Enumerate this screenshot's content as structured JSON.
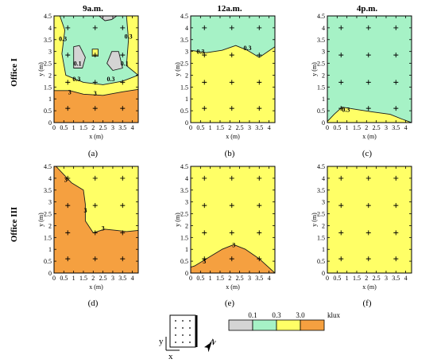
{
  "figure": {
    "column_titles": [
      "9a.m.",
      "12a.m.",
      "4p.m."
    ],
    "row_titles": [
      "Office I",
      "Office III"
    ],
    "panel_labels": [
      "(a)",
      "(b)",
      "(c)",
      "(d)",
      "(e)",
      "(f)"
    ],
    "xlabel": "x (m)",
    "ylabel": "y (m)",
    "x_ticks": [
      "0",
      "0.5",
      "1",
      "1.5",
      "2",
      "2.5",
      "3",
      "3.5",
      "4"
    ],
    "y_ticks": [
      "0",
      "0.5",
      "1",
      "1.5",
      "2",
      "2.5",
      "3",
      "3.5",
      "4",
      "4.5"
    ],
    "colors": {
      "below_0_1": "#d4d4d4",
      "range_0_1_0_3": "#a6f2c6",
      "range_0_3_3_0": "#ffff66",
      "above_3_0": "#f5a040"
    }
  },
  "legend": {
    "thresholds": [
      "0.1",
      "0.3",
      "3.0"
    ],
    "unit": "klux",
    "colors": [
      "#d4d4d4",
      "#a6f2c6",
      "#ffff66",
      "#f5a040"
    ]
  },
  "inset": {
    "y_label": "y",
    "x_label": "x",
    "north_label": "N"
  },
  "chart_data": {
    "type": "heatmap",
    "description_units": "illuminance isoline map, klux",
    "xlim": [
      0,
      4.3
    ],
    "ylim": [
      0,
      4.5
    ],
    "sensor_points": [
      [
        0.7,
        0.6
      ],
      [
        2.1,
        0.6
      ],
      [
        3.5,
        0.6
      ],
      [
        0.7,
        1.7
      ],
      [
        2.1,
        1.7
      ],
      [
        3.5,
        1.7
      ],
      [
        0.7,
        2.85
      ],
      [
        2.1,
        2.85
      ],
      [
        3.5,
        2.85
      ],
      [
        0.7,
        4.0
      ],
      [
        2.1,
        4.0
      ],
      [
        3.5,
        4.0
      ]
    ],
    "panels": [
      {
        "id": "a",
        "background": "range_0_1_0_3",
        "regions": [
          {
            "fill": "range_0_3_3_0",
            "points": [
              [
                0,
                0
              ],
              [
                4.3,
                0
              ],
              [
                4.3,
                2.0
              ],
              [
                3.5,
                1.75
              ],
              [
                2.5,
                1.6
              ],
              [
                1.5,
                1.7
              ],
              [
                0.6,
                2.0
              ],
              [
                0.4,
                2.9
              ],
              [
                0.55,
                3.9
              ],
              [
                0.3,
                4.5
              ],
              [
                0,
                4.5
              ]
            ]
          },
          {
            "fill": "range_0_3_3_0",
            "points": [
              [
                3.7,
                4.5
              ],
              [
                4.3,
                4.5
              ],
              [
                4.3,
                2.0
              ],
              [
                3.7,
                2.4
              ],
              [
                3.8,
                3.5
              ]
            ]
          },
          {
            "fill": "above_3_0",
            "points": [
              [
                0,
                0
              ],
              [
                4.3,
                0
              ],
              [
                4.3,
                1.4
              ],
              [
                3.5,
                1.3
              ],
              [
                2.5,
                1.15
              ],
              [
                1.5,
                1.2
              ],
              [
                0.8,
                1.35
              ],
              [
                0,
                1.35
              ]
            ]
          },
          {
            "fill": "below_0_1",
            "points": [
              [
                1.0,
                2.3
              ],
              [
                1.45,
                2.3
              ],
              [
                1.6,
                2.75
              ],
              [
                1.3,
                3.25
              ],
              [
                1.0,
                3.2
              ]
            ]
          },
          {
            "fill": "below_0_1",
            "points": [
              [
                2.7,
                2.5
              ],
              [
                3.0,
                2.2
              ],
              [
                3.5,
                2.3
              ],
              [
                3.3,
                3.0
              ],
              [
                2.95,
                3.0
              ]
            ]
          },
          {
            "fill": "below_0_1",
            "points": [
              [
                2.3,
                4.5
              ],
              [
                2.6,
                4.3
              ],
              [
                2.95,
                4.35
              ],
              [
                3.2,
                4.5
              ]
            ]
          },
          {
            "fill": "range_0_3_3_0",
            "points": [
              [
                1.95,
                2.8
              ],
              [
                2.25,
                2.8
              ],
              [
                2.25,
                3.1
              ],
              [
                1.95,
                3.1
              ]
            ]
          }
        ],
        "labels": [
          {
            "text": "0.3",
            "x": 0.45,
            "y": 3.55
          },
          {
            "text": "0.3",
            "x": 3.8,
            "y": 3.65
          },
          {
            "text": "0.1",
            "x": 1.2,
            "y": 2.5
          },
          {
            "text": "0.1",
            "x": 3.6,
            "y": 2.5
          },
          {
            "text": "0.3",
            "x": 1.15,
            "y": 1.85
          },
          {
            "text": "0.3",
            "x": 2.9,
            "y": 1.85
          },
          {
            "text": "3",
            "x": 0.8,
            "y": 1.3
          },
          {
            "text": "3",
            "x": 2.1,
            "y": 1.25
          }
        ]
      },
      {
        "id": "b",
        "background": "range_0_3_3_0",
        "regions": [
          {
            "fill": "range_0_1_0_3",
            "points": [
              [
                0,
                3.05
              ],
              [
                0.8,
                2.95
              ],
              [
                1.6,
                3.05
              ],
              [
                2.3,
                3.25
              ],
              [
                2.9,
                3.05
              ],
              [
                3.5,
                2.75
              ],
              [
                4.3,
                3.2
              ],
              [
                4.3,
                4.5
              ],
              [
                0,
                4.5
              ]
            ]
          }
        ],
        "labels": [
          {
            "text": "0.3",
            "x": 0.5,
            "y": 3.0
          },
          {
            "text": "0.3",
            "x": 2.9,
            "y": 3.15
          }
        ]
      },
      {
        "id": "c",
        "background": "range_0_1_0_3",
        "regions": [
          {
            "fill": "range_0_3_3_0",
            "points": [
              [
                0,
                0
              ],
              [
                4.3,
                0
              ],
              [
                3.8,
                0.15
              ],
              [
                3.2,
                0.35
              ],
              [
                2.3,
                0.45
              ],
              [
                1.5,
                0.55
              ],
              [
                0.75,
                0.65
              ],
              [
                0.35,
                0.35
              ],
              [
                0,
                0.05
              ]
            ]
          }
        ],
        "labels": [
          {
            "text": "0.3",
            "x": 0.95,
            "y": 0.55
          }
        ]
      },
      {
        "id": "d",
        "background": "range_0_3_3_0",
        "regions": [
          {
            "fill": "above_3_0",
            "points": [
              [
                0,
                0
              ],
              [
                4.3,
                0
              ],
              [
                4.3,
                1.8
              ],
              [
                3.7,
                1.75
              ],
              [
                3.2,
                1.8
              ],
              [
                2.6,
                1.85
              ],
              [
                2.0,
                1.7
              ],
              [
                1.6,
                2.2
              ],
              [
                1.6,
                2.9
              ],
              [
                1.5,
                3.5
              ],
              [
                0.9,
                3.8
              ],
              [
                0.1,
                4.5
              ],
              [
                0,
                4.5
              ]
            ]
          }
        ],
        "labels": [
          {
            "text": "3",
            "x": 0.6,
            "y": 3.95
          },
          {
            "text": "3",
            "x": 1.6,
            "y": 2.65
          },
          {
            "text": "3",
            "x": 2.5,
            "y": 1.9
          }
        ]
      },
      {
        "id": "e",
        "background": "range_0_3_3_0",
        "regions": [
          {
            "fill": "above_3_0",
            "points": [
              [
                0,
                0
              ],
              [
                4.3,
                0
              ],
              [
                3.5,
                0.6
              ],
              [
                2.8,
                1.0
              ],
              [
                2.2,
                1.2
              ],
              [
                1.6,
                1.0
              ],
              [
                0.9,
                0.65
              ],
              [
                0.2,
                0.3
              ],
              [
                0,
                0.25
              ]
            ]
          }
        ],
        "labels": [
          {
            "text": "3",
            "x": 2.2,
            "y": 1.2
          },
          {
            "text": "3",
            "x": 0.7,
            "y": 0.5
          }
        ]
      },
      {
        "id": "f",
        "background": "range_0_3_3_0",
        "regions": [],
        "labels": []
      }
    ]
  }
}
